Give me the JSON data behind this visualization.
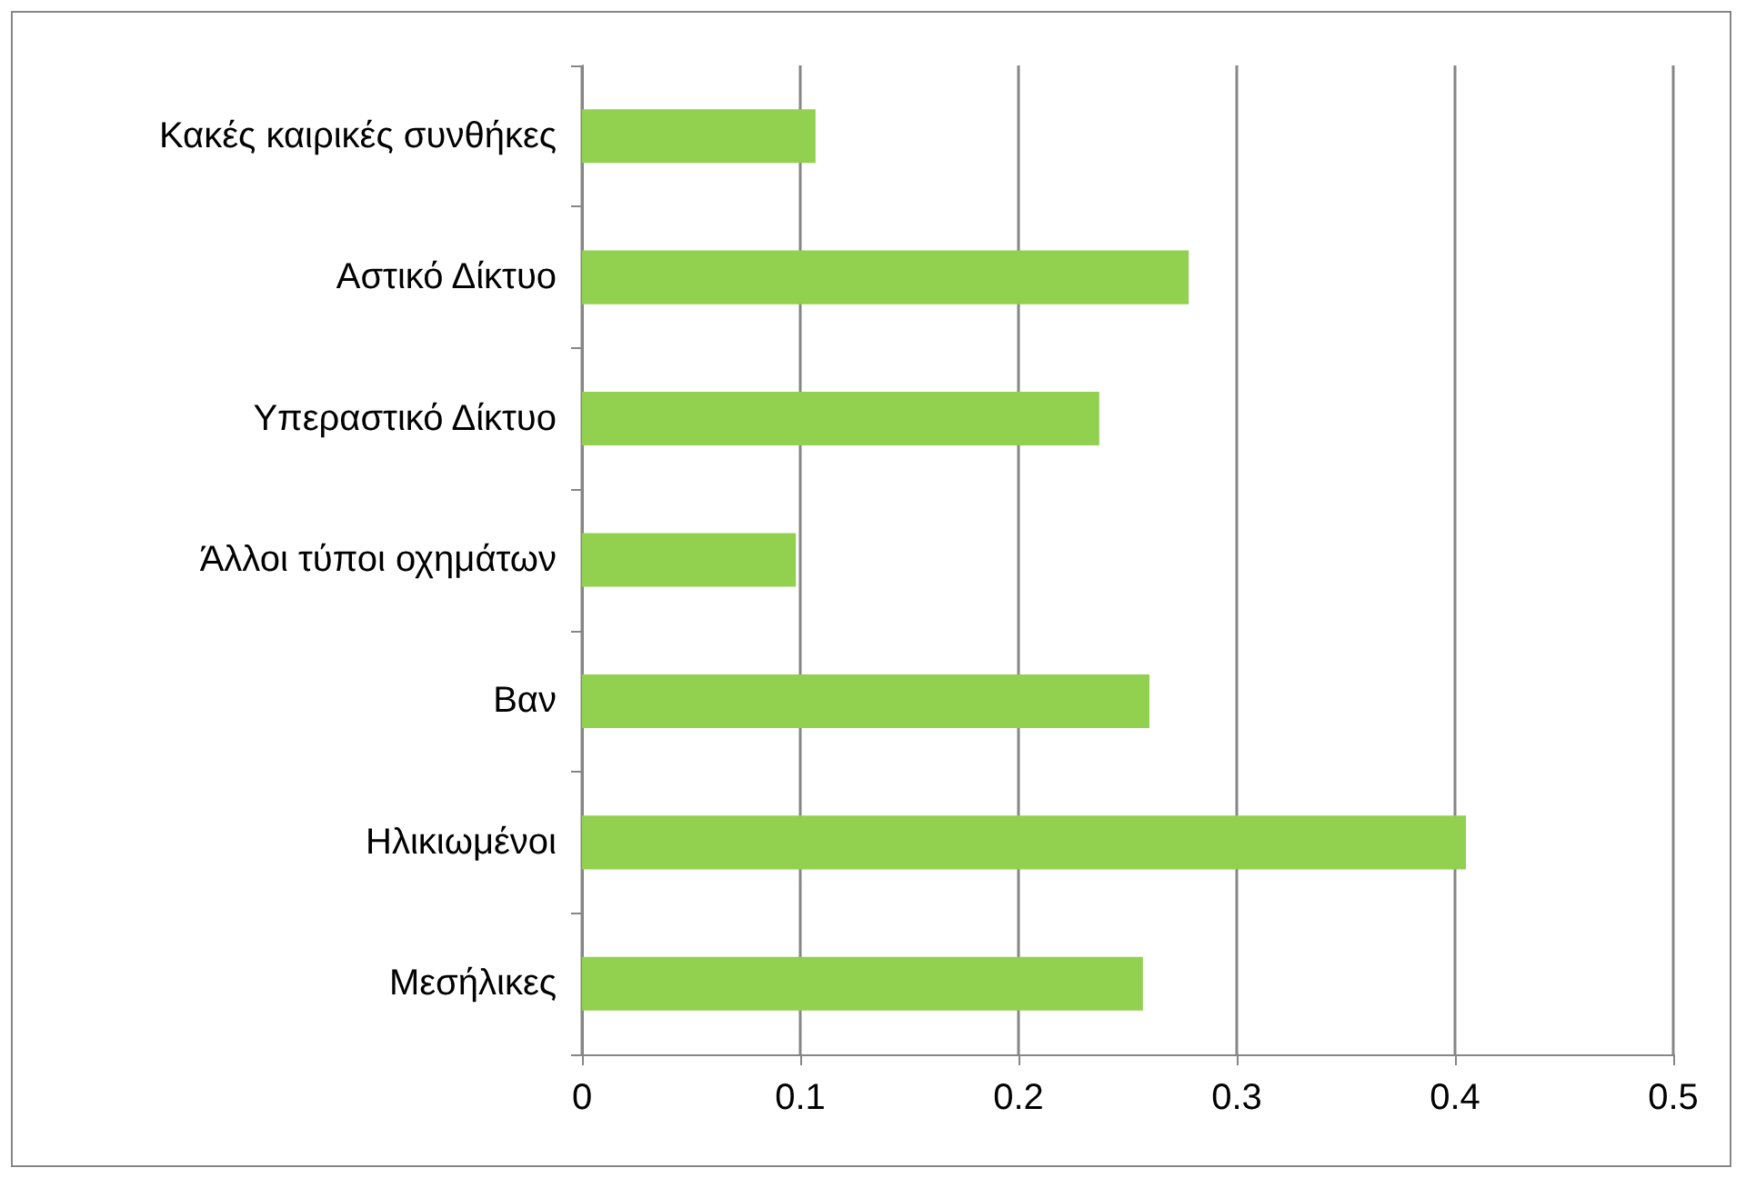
{
  "chart_data": {
    "type": "bar",
    "orientation": "horizontal",
    "categories": [
      "Κακές καιρικές συνθήκες",
      "Αστικό Δίκτυο",
      "Υπεραστικό Δίκτυο",
      "Άλλοι τύποι οχημάτων",
      "Βαν",
      "Ηλικιωμένοι",
      "Μεσήλικες"
    ],
    "values": [
      0.107,
      0.278,
      0.237,
      0.098,
      0.26,
      0.405,
      0.257
    ],
    "color": "#92d050",
    "xlim": [
      0,
      0.5
    ],
    "xticks": [
      0,
      0.1,
      0.2,
      0.3,
      0.4,
      0.5
    ],
    "grid": "x"
  }
}
